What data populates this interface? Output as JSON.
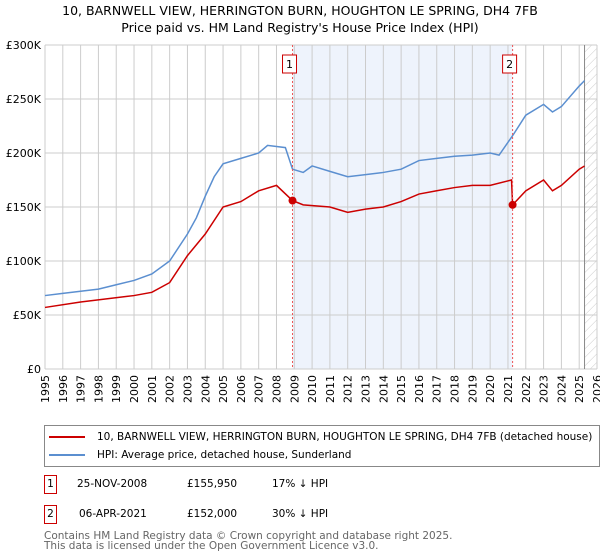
{
  "title_line1": "10, BARNWELL VIEW, HERRINGTON BURN, HOUGHTON LE SPRING, DH4 7FB",
  "title_line2": "Price paid vs. HM Land Registry's House Price Index (HPI)",
  "legend": {
    "red": "10, BARNWELL VIEW, HERRINGTON BURN, HOUGHTON LE SPRING, DH4 7FB (detached house)",
    "blue": "HPI: Average price, detached house, Sunderland"
  },
  "transactions": [
    {
      "num": "1",
      "date": "25-NOV-2008",
      "price": "£155,950",
      "hpi": "17% ↓ HPI"
    },
    {
      "num": "2",
      "date": "06-APR-2021",
      "price": "£152,000",
      "hpi": "30% ↓ HPI"
    }
  ],
  "footer": {
    "line1": "Contains HM Land Registry data © Crown copyright and database right 2025.",
    "line2": "This data is licensed under the Open Government Licence v3.0."
  },
  "colors": {
    "red": "#cc0000",
    "blue": "#5b8fd0",
    "shade": "#eef3fc"
  },
  "chart_data": {
    "type": "line",
    "xlim": [
      1995,
      2026
    ],
    "ylim": [
      0,
      300000
    ],
    "yticks": [
      {
        "v": 0,
        "label": "£0"
      },
      {
        "v": 50000,
        "label": "£50K"
      },
      {
        "v": 100000,
        "label": "£100K"
      },
      {
        "v": 150000,
        "label": "£150K"
      },
      {
        "v": 200000,
        "label": "£200K"
      },
      {
        "v": 250000,
        "label": "£250K"
      },
      {
        "v": 300000,
        "label": "£300K"
      }
    ],
    "xticks": [
      "1995",
      "1996",
      "1997",
      "1998",
      "1999",
      "2000",
      "2001",
      "2002",
      "2003",
      "2004",
      "2005",
      "2006",
      "2007",
      "2008",
      "2009",
      "2010",
      "2011",
      "2012",
      "2013",
      "2014",
      "2015",
      "2016",
      "2017",
      "2018",
      "2019",
      "2020",
      "2021",
      "2022",
      "2023",
      "2024",
      "2025",
      "2026"
    ],
    "shaded_range": [
      2008.9,
      2021.26
    ],
    "hatch_from": 2025.3,
    "markers": [
      {
        "label": "1",
        "x": 2008.9,
        "y": 155950
      },
      {
        "label": "2",
        "x": 2021.26,
        "y": 152000
      }
    ],
    "series": [
      {
        "name": "HPI",
        "color": "#5b8fd0",
        "points": [
          [
            1995,
            68000
          ],
          [
            1996,
            70000
          ],
          [
            1997,
            72000
          ],
          [
            1998,
            74000
          ],
          [
            1999,
            78000
          ],
          [
            2000,
            82000
          ],
          [
            2001,
            88000
          ],
          [
            2002,
            100000
          ],
          [
            2003,
            125000
          ],
          [
            2003.5,
            140000
          ],
          [
            2004,
            160000
          ],
          [
            2004.5,
            178000
          ],
          [
            2005,
            190000
          ],
          [
            2006,
            195000
          ],
          [
            2007,
            200000
          ],
          [
            2007.5,
            207000
          ],
          [
            2008.5,
            205000
          ],
          [
            2008.9,
            185000
          ],
          [
            2009.5,
            182000
          ],
          [
            2010,
            188000
          ],
          [
            2011,
            183000
          ],
          [
            2012,
            178000
          ],
          [
            2013,
            180000
          ],
          [
            2014,
            182000
          ],
          [
            2015,
            185000
          ],
          [
            2016,
            193000
          ],
          [
            2017,
            195000
          ],
          [
            2018,
            197000
          ],
          [
            2019,
            198000
          ],
          [
            2020,
            200000
          ],
          [
            2020.5,
            198000
          ],
          [
            2021.3,
            217000
          ],
          [
            2022,
            235000
          ],
          [
            2023,
            245000
          ],
          [
            2023.5,
            238000
          ],
          [
            2024,
            243000
          ],
          [
            2025,
            262000
          ],
          [
            2025.3,
            267000
          ]
        ]
      },
      {
        "name": "Price paid",
        "color": "#cc0000",
        "points": [
          [
            1995,
            57000
          ],
          [
            1997,
            62000
          ],
          [
            2000,
            68000
          ],
          [
            2001,
            71000
          ],
          [
            2002,
            80000
          ],
          [
            2003,
            105000
          ],
          [
            2004,
            125000
          ],
          [
            2005,
            150000
          ],
          [
            2006,
            155000
          ],
          [
            2007,
            165000
          ],
          [
            2008,
            170000
          ],
          [
            2008.9,
            155950
          ],
          [
            2009.5,
            152000
          ],
          [
            2011,
            150000
          ],
          [
            2012,
            145000
          ],
          [
            2013,
            148000
          ],
          [
            2014,
            150000
          ],
          [
            2015,
            155000
          ],
          [
            2016,
            162000
          ],
          [
            2017,
            165000
          ],
          [
            2018,
            168000
          ],
          [
            2019,
            170000
          ],
          [
            2020,
            170000
          ],
          [
            2021.2,
            175000
          ],
          [
            2021.26,
            152000
          ],
          [
            2022,
            165000
          ],
          [
            2023,
            175000
          ],
          [
            2023.5,
            165000
          ],
          [
            2024,
            170000
          ],
          [
            2025,
            185000
          ],
          [
            2025.3,
            188000
          ]
        ]
      }
    ]
  }
}
